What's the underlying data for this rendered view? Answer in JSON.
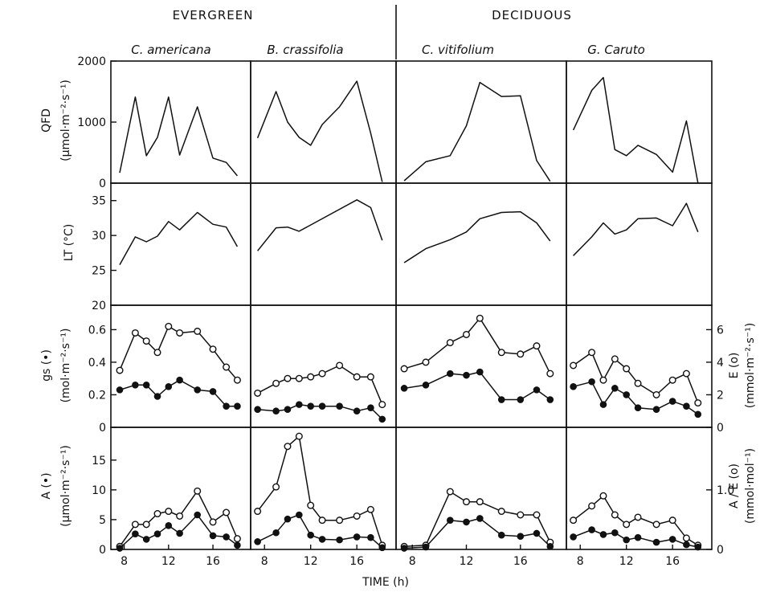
{
  "figure": {
    "group_left": "EVERGREEN",
    "group_right": "DECIDUOUS",
    "xlabel": "TIME (h)"
  },
  "chart_data": {
    "type": "line",
    "x_ticks": [
      8,
      12,
      16
    ],
    "xlim": [
      6.8,
      19.4
    ],
    "species": [
      "C. americana",
      "B. crassifolia",
      "C. vitifolium",
      "G. Caruto"
    ],
    "rows": [
      {
        "key": "qfd",
        "ylabel_main": "QFD",
        "ylabel_unit": "(μmol·m⁻²·s⁻¹)",
        "ylim": [
          0,
          2000
        ],
        "yticks": [
          0,
          1000,
          2000
        ],
        "series": [
          {
            "style": "line",
            "panels": [
              {
                "x": [
                  7.6,
                  9,
                  10,
                  11,
                  12,
                  13,
                  14.6,
                  16,
                  17.2,
                  18.2
                ],
                "y": [
                  170,
                  1410,
                  450,
                  750,
                  1410,
                  460,
                  1250,
                  410,
                  340,
                  120
                ]
              },
              {
                "x": [
                  7.4,
                  9,
                  10,
                  11,
                  12,
                  13,
                  14.5,
                  16,
                  17.2,
                  18.2
                ],
                "y": [
                  740,
                  1500,
                  1000,
                  750,
                  620,
                  960,
                  1250,
                  1670,
                  820,
                  20
                ]
              },
              {
                "x": [
                  7.4,
                  9,
                  10.8,
                  12,
                  13,
                  14.6,
                  16,
                  17.2,
                  18.2
                ],
                "y": [
                  40,
                  350,
                  450,
                  940,
                  1650,
                  1420,
                  1430,
                  370,
                  30
                ]
              },
              {
                "x": [
                  7.4,
                  9,
                  10,
                  11,
                  12,
                  13,
                  14.6,
                  16,
                  17.2,
                  18.2
                ],
                "y": [
                  870,
                  1520,
                  1730,
                  550,
                  450,
                  620,
                  470,
                  180,
                  1020,
                  0
                ]
              }
            ]
          }
        ]
      },
      {
        "key": "lt",
        "ylabel_main": "LT (°C)",
        "ylabel_unit": "",
        "ylim": [
          20,
          37.5
        ],
        "yticks": [
          20,
          25,
          30,
          35
        ],
        "series": [
          {
            "style": "line",
            "panels": [
              {
                "x": [
                  7.6,
                  9,
                  10,
                  11,
                  12,
                  13,
                  14.6,
                  16,
                  17.2,
                  18.2
                ],
                "y": [
                  25.8,
                  29.8,
                  29.1,
                  29.9,
                  32,
                  30.8,
                  33.3,
                  31.6,
                  31.2,
                  28.4
                ]
              },
              {
                "x": [
                  7.4,
                  9,
                  10,
                  11,
                  16,
                  17.2,
                  18.2
                ],
                "y": [
                  27.8,
                  31.1,
                  31.2,
                  30.6,
                  35.1,
                  34,
                  29.3
                ]
              },
              {
                "x": [
                  7.4,
                  9,
                  10.8,
                  12,
                  13,
                  14.6,
                  16,
                  17.2,
                  18.2
                ],
                "y": [
                  26.1,
                  28.1,
                  29.4,
                  30.5,
                  32.4,
                  33.3,
                  33.4,
                  31.8,
                  29.2
                ]
              },
              {
                "x": [
                  7.4,
                  9,
                  10,
                  11,
                  12,
                  13,
                  14.6,
                  16,
                  17.2,
                  18.2
                ],
                "y": [
                  27.1,
                  29.8,
                  31.8,
                  30.2,
                  30.8,
                  32.4,
                  32.5,
                  31.4,
                  34.6,
                  30.5
                ]
              }
            ]
          }
        ]
      },
      {
        "key": "gs_e",
        "ylabel_main": "gs (•)",
        "ylabel_unit": "(mol·m⁻²·s⁻¹)",
        "ylabel_right_main": "E (o)",
        "ylabel_right_unit": "(mmol·m⁻²·s⁻¹)",
        "ylim": [
          0,
          0.75
        ],
        "yticks": [
          0,
          0.2,
          0.4,
          0.6
        ],
        "ytick_labels": [
          "0",
          "0.2",
          "0.4",
          "0.6"
        ],
        "y2lim": [
          0,
          7.5
        ],
        "y2ticks": [
          0,
          2,
          4,
          6
        ],
        "series": [
          {
            "name": "E",
            "style": "open",
            "axis": "right",
            "panels": [
              {
                "x": [
                  7.6,
                  9,
                  10,
                  11,
                  12,
                  13,
                  14.6,
                  16,
                  17.2,
                  18.2
                ],
                "y": [
                  3.5,
                  5.8,
                  5.3,
                  4.6,
                  6.2,
                  5.8,
                  5.9,
                  4.8,
                  3.7,
                  2.9
                ]
              },
              {
                "x": [
                  7.4,
                  9,
                  10,
                  11,
                  12,
                  13,
                  14.5,
                  16,
                  17.2,
                  18.2
                ],
                "y": [
                  2.1,
                  2.7,
                  3.0,
                  3.0,
                  3.1,
                  3.3,
                  3.8,
                  3.1,
                  3.1,
                  1.4
                ]
              },
              {
                "x": [
                  7.4,
                  9,
                  10.8,
                  12,
                  13,
                  14.6,
                  16,
                  17.2,
                  18.2
                ],
                "y": [
                  3.6,
                  4.0,
                  5.2,
                  5.7,
                  6.7,
                  4.6,
                  4.5,
                  5.0,
                  3.3
                ]
              },
              {
                "x": [
                  7.4,
                  9,
                  10,
                  11,
                  12,
                  13,
                  14.6,
                  16,
                  17.2,
                  18.2
                ],
                "y": [
                  3.8,
                  4.6,
                  2.9,
                  4.2,
                  3.6,
                  2.7,
                  2.0,
                  2.9,
                  3.3,
                  1.5
                ]
              }
            ]
          },
          {
            "name": "gs",
            "style": "filled",
            "axis": "left",
            "panels": [
              {
                "x": [
                  7.6,
                  9,
                  10,
                  11,
                  12,
                  13,
                  14.6,
                  16,
                  17.2,
                  18.2
                ],
                "y": [
                  0.23,
                  0.26,
                  0.26,
                  0.19,
                  0.25,
                  0.29,
                  0.23,
                  0.22,
                  0.13,
                  0.13
                ]
              },
              {
                "x": [
                  7.4,
                  9,
                  10,
                  11,
                  12,
                  13,
                  14.5,
                  16,
                  17.2,
                  18.2
                ],
                "y": [
                  0.11,
                  0.1,
                  0.11,
                  0.14,
                  0.13,
                  0.13,
                  0.13,
                  0.1,
                  0.12,
                  0.05
                ]
              },
              {
                "x": [
                  7.4,
                  9,
                  10.8,
                  12,
                  13,
                  14.6,
                  16,
                  17.2,
                  18.2
                ],
                "y": [
                  0.24,
                  0.26,
                  0.33,
                  0.32,
                  0.34,
                  0.17,
                  0.17,
                  0.23,
                  0.17
                ]
              },
              {
                "x": [
                  7.4,
                  9,
                  10,
                  11,
                  12,
                  13,
                  14.6,
                  16,
                  17.2,
                  18.2
                ],
                "y": [
                  0.25,
                  0.28,
                  0.14,
                  0.24,
                  0.2,
                  0.12,
                  0.11,
                  0.16,
                  0.13,
                  0.08
                ]
              }
            ]
          }
        ]
      },
      {
        "key": "a_ae",
        "ylabel_main": "A (•)",
        "ylabel_unit": "(μmol·m⁻²·s⁻¹)",
        "ylabel_right_main": "A / E (o)",
        "ylabel_right_unit": "(mmol·mol⁻¹)",
        "ylim": [
          0,
          20.5
        ],
        "yticks": [
          0,
          5,
          10,
          15
        ],
        "y2lim": [
          0,
          2.05
        ],
        "y2ticks": [
          0,
          1.0
        ],
        "y2tick_labels": [
          "0",
          "1.0"
        ],
        "series": [
          {
            "name": "A/E",
            "style": "open",
            "axis": "right",
            "panels": [
              {
                "x": [
                  7.6,
                  9,
                  10,
                  11,
                  12,
                  13,
                  14.6,
                  16,
                  17.2,
                  18.2
                ],
                "y": [
                  0.05,
                  0.42,
                  0.42,
                  0.6,
                  0.64,
                  0.56,
                  0.98,
                  0.46,
                  0.62,
                  0.18
                ]
              },
              {
                "x": [
                  7.4,
                  9,
                  10,
                  11,
                  12,
                  13,
                  14.5,
                  16,
                  17.2,
                  18.2
                ],
                "y": [
                  0.64,
                  1.05,
                  1.73,
                  1.9,
                  0.74,
                  0.49,
                  0.49,
                  0.56,
                  0.67,
                  0.07
                ]
              },
              {
                "x": [
                  7.4,
                  9,
                  10.8,
                  12,
                  13,
                  14.6,
                  16,
                  17.2,
                  18.2
                ],
                "y": [
                  0.05,
                  0.07,
                  0.97,
                  0.8,
                  0.8,
                  0.64,
                  0.58,
                  0.58,
                  0.12
                ]
              },
              {
                "x": [
                  7.4,
                  9,
                  10,
                  11,
                  12,
                  13,
                  14.6,
                  16,
                  17.2,
                  18.2
                ],
                "y": [
                  0.49,
                  0.73,
                  0.9,
                  0.58,
                  0.42,
                  0.54,
                  0.42,
                  0.49,
                  0.19,
                  0.07
                ]
              }
            ]
          },
          {
            "name": "A",
            "style": "filled",
            "axis": "left",
            "panels": [
              {
                "x": [
                  7.6,
                  9,
                  10,
                  11,
                  12,
                  13,
                  14.6,
                  16,
                  17.2,
                  18.2
                ],
                "y": [
                  0.2,
                  2.6,
                  1.7,
                  2.6,
                  4.0,
                  2.7,
                  5.8,
                  2.3,
                  2.1,
                  0.7
                ]
              },
              {
                "x": [
                  7.4,
                  9,
                  10,
                  11,
                  12,
                  13,
                  14.5,
                  16,
                  17.2,
                  18.2
                ],
                "y": [
                  1.3,
                  2.8,
                  5.1,
                  5.8,
                  2.4,
                  1.7,
                  1.6,
                  2.1,
                  2.0,
                  0.3
                ]
              },
              {
                "x": [
                  7.4,
                  9,
                  10.8,
                  12,
                  13,
                  14.6,
                  16,
                  17.2,
                  18.2
                ],
                "y": [
                  0.2,
                  0.4,
                  4.9,
                  4.6,
                  5.2,
                  2.4,
                  2.2,
                  2.7,
                  0.5
                ]
              },
              {
                "x": [
                  7.4,
                  9,
                  10,
                  11,
                  12,
                  13,
                  14.6,
                  16,
                  17.2,
                  18.2
                ],
                "y": [
                  2.1,
                  3.3,
                  2.5,
                  2.8,
                  1.6,
                  2.0,
                  1.2,
                  1.7,
                  0.8,
                  0.4
                ]
              }
            ]
          }
        ]
      }
    ]
  }
}
